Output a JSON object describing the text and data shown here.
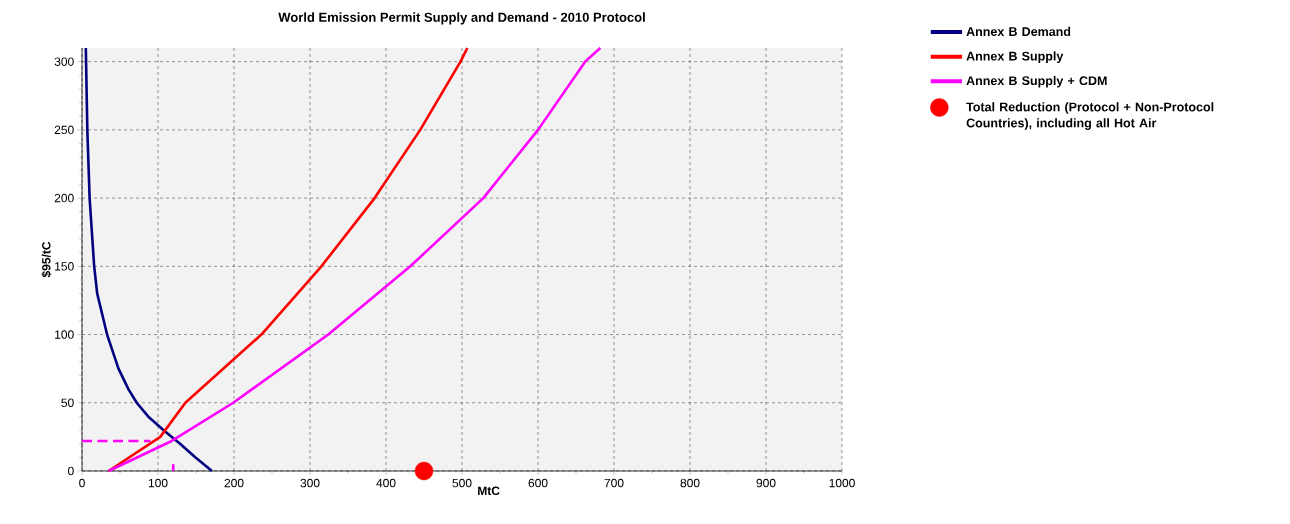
{
  "chart_data": {
    "type": "line",
    "title": "World Emission Permit Supply and Demand - 2010 Protocol",
    "xlabel": "MtC",
    "ylabel": "$95/tC",
    "xlim": [
      0,
      1000
    ],
    "ylim": [
      0,
      310
    ],
    "xticks": [
      0,
      100,
      200,
      300,
      400,
      500,
      600,
      700,
      800,
      900,
      1000
    ],
    "yticks": [
      0,
      50,
      100,
      150,
      200,
      250,
      300
    ],
    "grid": true,
    "legend": "right",
    "series": [
      {
        "name": "Annex B Demand",
        "color": "#000080",
        "x": [
          5,
          7,
          10,
          16,
          20,
          33,
          48,
          61,
          72,
          87,
          107,
          129,
          149,
          171
        ],
        "values": [
          310,
          250,
          200,
          150,
          130,
          100,
          75,
          60,
          50,
          40,
          30,
          20,
          10,
          0
        ]
      },
      {
        "name": "Annex B Supply",
        "color": "#ff0000",
        "x": [
          35,
          103,
          136,
          236,
          315,
          385,
          445,
          498,
          507
        ],
        "values": [
          0,
          25,
          50,
          100,
          150,
          200,
          250,
          300,
          310
        ]
      },
      {
        "name": "Annex B Supply + CDM",
        "color": "#ff00ff",
        "x": [
          35,
          118,
          199,
          324,
          432,
          528,
          600,
          662,
          682
        ],
        "values": [
          0,
          22,
          50,
          100,
          150,
          200,
          250,
          300,
          310
        ]
      },
      {
        "name": "Total Reduction (Protocol + Non-Protocol Countries), including all Hot Air",
        "type": "scatter",
        "color": "#ff0000",
        "x": [
          450
        ],
        "values": [
          0
        ]
      },
      {
        "color": "#ff00ff",
        "line_style": "dashed",
        "x": [
          0,
          90
        ],
        "values": [
          22,
          22
        ]
      },
      {
        "color": "#ff00ff",
        "line_style": "dashed",
        "x": [
          120,
          120
        ],
        "values": [
          0,
          5
        ]
      }
    ]
  }
}
